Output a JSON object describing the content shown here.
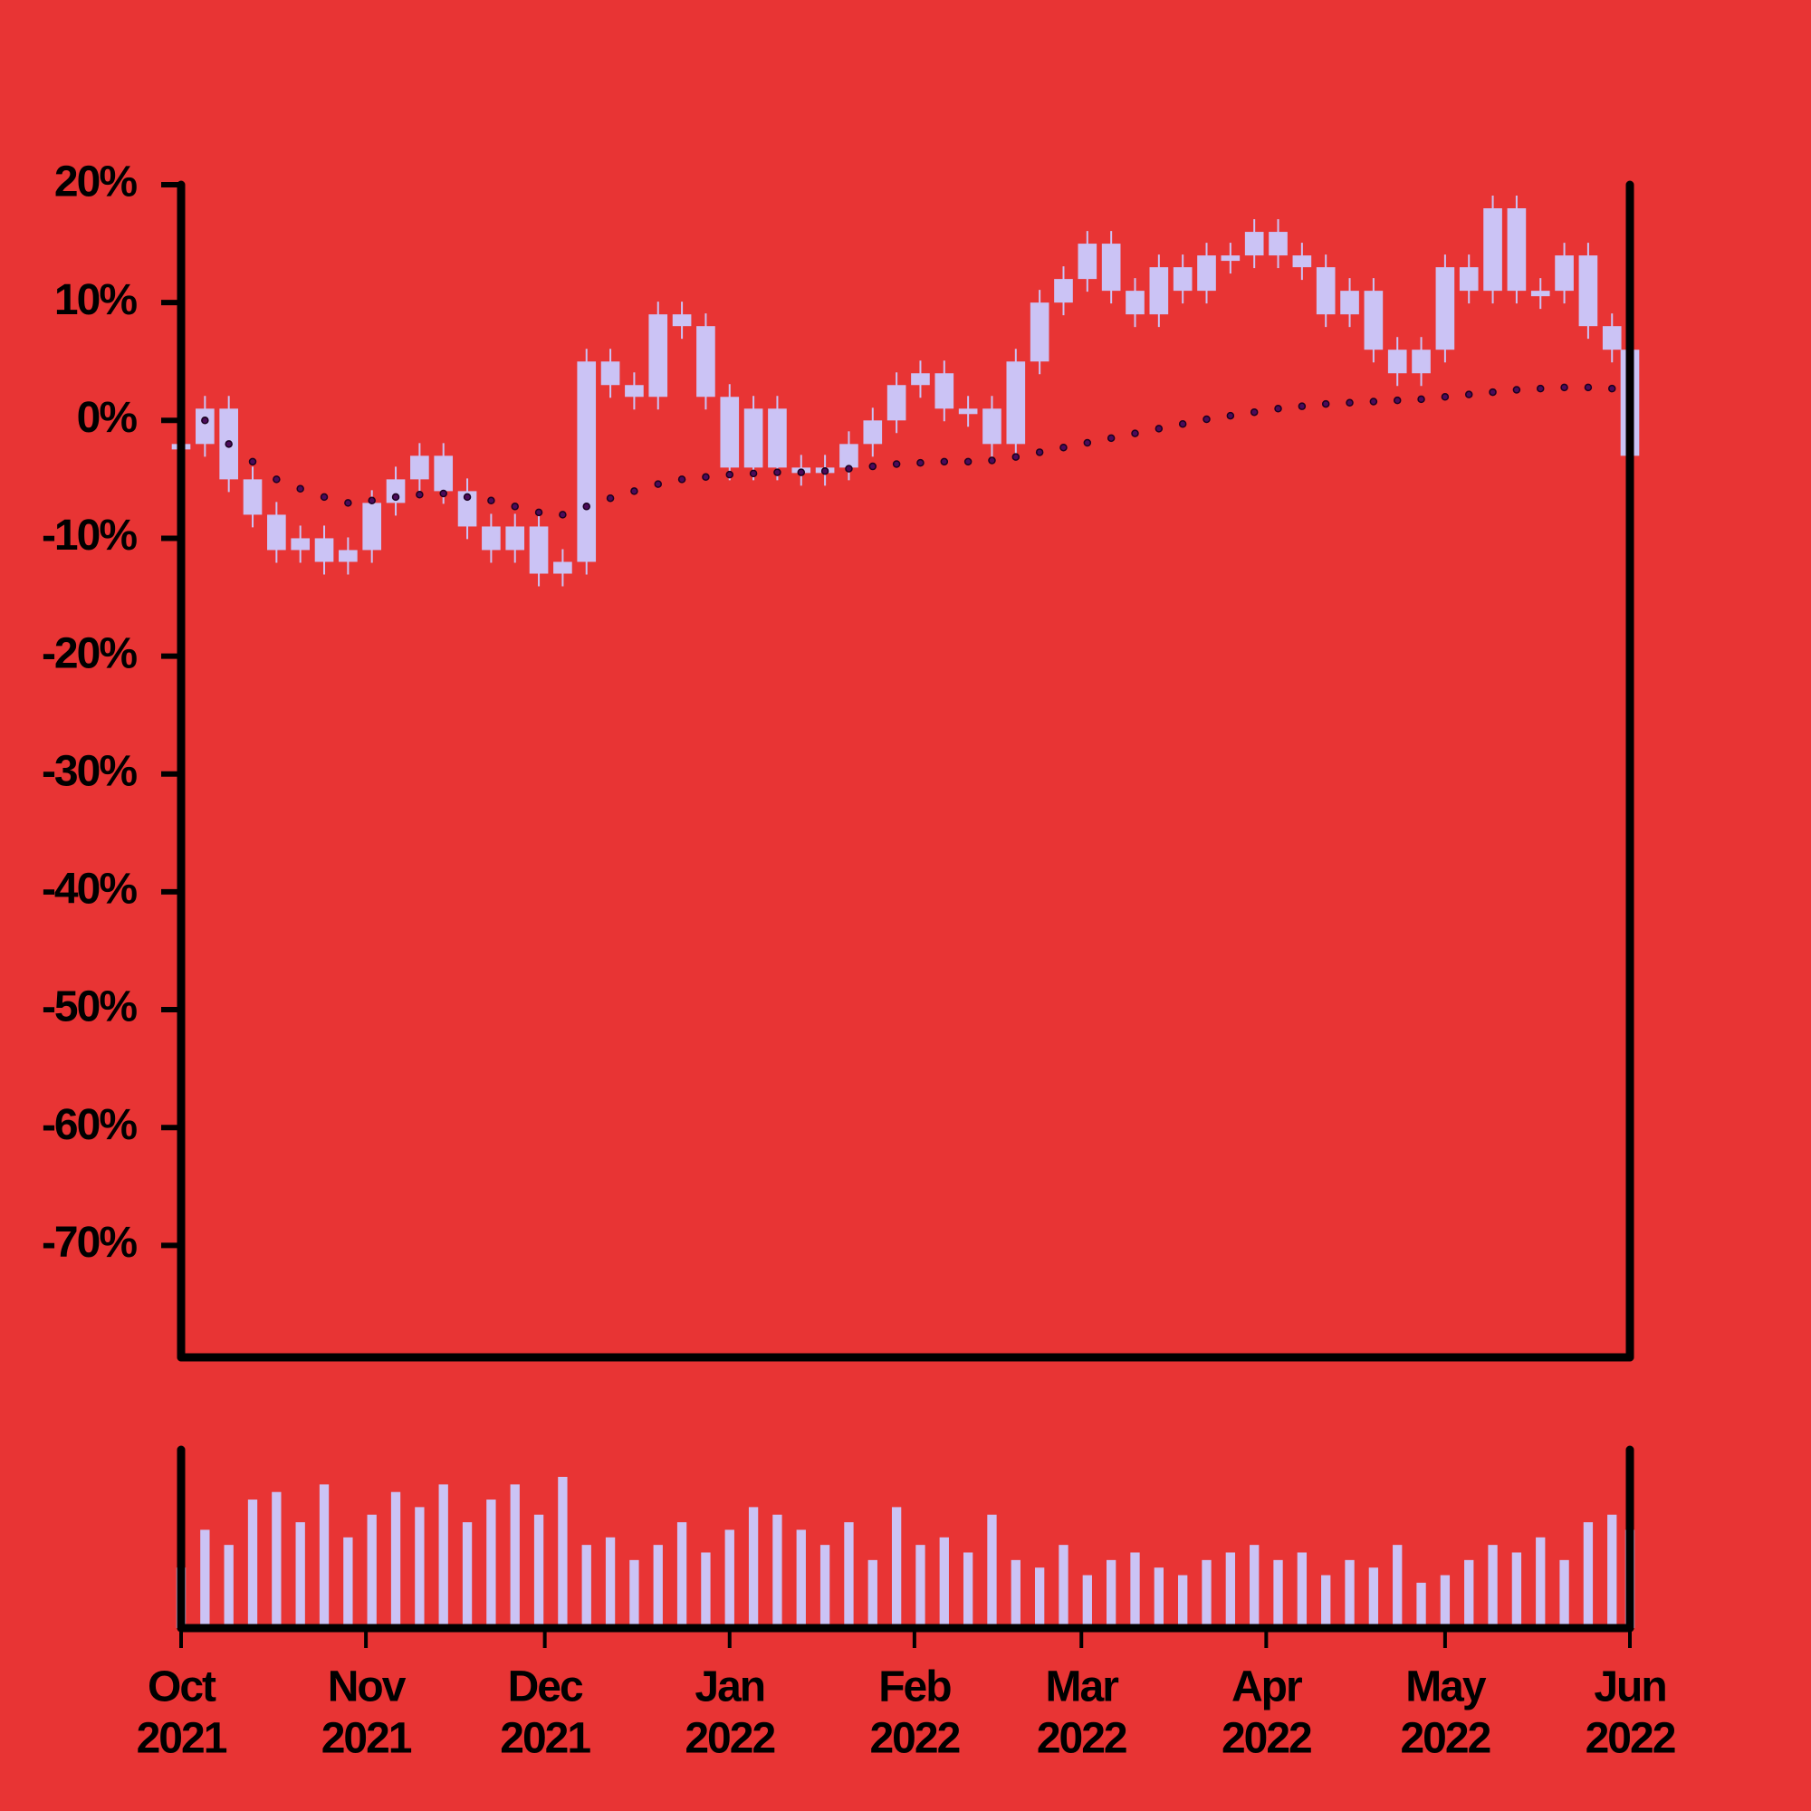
{
  "chart_data": {
    "type": "candle",
    "xlim": [
      "2021-10-01",
      "2022-06-01"
    ],
    "xticks": [
      {
        "value": "2021-10-01",
        "label": [
          "Oct",
          "2021"
        ]
      },
      {
        "value": "2021-11-01",
        "label": [
          "Nov",
          "2021"
        ]
      },
      {
        "value": "2021-12-01",
        "label": [
          "Dec",
          "2021"
        ]
      },
      {
        "value": "2022-01-01",
        "label": [
          "Jan",
          "2022"
        ]
      },
      {
        "value": "2022-02-01",
        "label": [
          "Feb",
          "2022"
        ]
      },
      {
        "value": "2022-03-01",
        "label": [
          "Mar",
          "2022"
        ]
      },
      {
        "value": "2022-04-01",
        "label": [
          "Apr",
          "2022"
        ]
      },
      {
        "value": "2022-05-01",
        "label": [
          "May",
          "2022"
        ]
      },
      {
        "value": "2022-06-01",
        "label": [
          "Jun",
          "2022"
        ]
      }
    ],
    "ylim": [
      -79.5,
      20
    ],
    "yticks": [
      {
        "value": 20,
        "label": "20%"
      },
      {
        "value": 10,
        "label": "10%"
      },
      {
        "value": 0,
        "label": "0%"
      },
      {
        "value": -10,
        "label": "-10%"
      },
      {
        "value": -20,
        "label": "-20%"
      },
      {
        "value": -30,
        "label": "-30%"
      },
      {
        "value": -40,
        "label": "-40%"
      },
      {
        "value": -50,
        "label": "-50%"
      },
      {
        "value": -60,
        "label": "-60%"
      },
      {
        "value": -70,
        "label": "-70%"
      }
    ],
    "x": [
      "2021-10-01",
      "2021-10-05",
      "2021-10-09",
      "2021-10-13",
      "2021-10-17",
      "2021-10-21",
      "2021-10-25",
      "2021-10-29",
      "2021-11-02",
      "2021-11-06",
      "2021-11-10",
      "2021-11-14",
      "2021-11-18",
      "2021-11-22",
      "2021-11-26",
      "2021-11-30",
      "2021-12-04",
      "2021-12-08",
      "2021-12-12",
      "2021-12-16",
      "2021-12-20",
      "2021-12-24",
      "2021-12-28",
      "2022-01-01",
      "2022-01-05",
      "2022-01-09",
      "2022-01-13",
      "2022-01-17",
      "2022-01-21",
      "2022-01-25",
      "2022-01-29",
      "2022-02-02",
      "2022-02-06",
      "2022-02-10",
      "2022-02-14",
      "2022-02-18",
      "2022-02-22",
      "2022-02-26",
      "2022-03-02",
      "2022-03-06",
      "2022-03-10",
      "2022-03-14",
      "2022-03-18",
      "2022-03-22",
      "2022-03-26",
      "2022-03-30",
      "2022-04-03",
      "2022-04-07",
      "2022-04-11",
      "2022-04-15",
      "2022-04-19",
      "2022-04-23",
      "2022-04-27",
      "2022-05-01",
      "2022-05-05",
      "2022-05-09",
      "2022-05-13",
      "2022-05-17",
      "2022-05-21",
      "2022-05-25",
      "2022-05-29",
      "2022-06-01"
    ],
    "series": [
      {
        "color": "#cbc3f5",
        "values": [
          -2,
          1,
          -5,
          -8,
          -11,
          -10,
          -12,
          -11,
          -7,
          -5,
          -3,
          -6,
          -9,
          -11,
          -9,
          -13,
          -12,
          5,
          3,
          2,
          9,
          8,
          2,
          -4,
          1,
          -4,
          -4,
          -4,
          -2,
          0,
          3,
          4,
          1,
          1,
          -2,
          5,
          10,
          12,
          15,
          11,
          9,
          13,
          11,
          14,
          14,
          16,
          14,
          13,
          9,
          11,
          6,
          4,
          6,
          13,
          11,
          18,
          11,
          11,
          14,
          8,
          6,
          -3
        ]
      },
      {
        "color": "#4a0a5a",
        "values": [
          -2,
          0,
          -2,
          -3.5,
          -5,
          -5.8,
          -6.5,
          -7,
          -6.8,
          -6.5,
          -6.3,
          -6.2,
          -6.5,
          -6.8,
          -7.3,
          -7.8,
          -8,
          -7.3,
          -6.6,
          -6,
          -5.4,
          -5,
          -4.8,
          -4.6,
          -4.5,
          -4.4,
          -4.4,
          -4.3,
          -4.1,
          -3.9,
          -3.7,
          -3.6,
          -3.5,
          -3.5,
          -3.4,
          -3.1,
          -2.7,
          -2.3,
          -1.9,
          -1.5,
          -1.1,
          -0.7,
          -0.3,
          0.1,
          0.4,
          0.7,
          1,
          1.2,
          1.4,
          1.5,
          1.6,
          1.7,
          1.8,
          2,
          2.2,
          2.4,
          2.6,
          2.7,
          2.8,
          2.8,
          2.7,
          2.6
        ]
      }
    ],
    "volume": {
      "color": "#cbc3f5",
      "values": [
        40,
        65,
        55,
        85,
        90,
        70,
        95,
        60,
        75,
        90,
        80,
        95,
        70,
        85,
        95,
        75,
        100,
        55,
        60,
        45,
        55,
        70,
        50,
        65,
        80,
        75,
        65,
        55,
        70,
        45,
        80,
        55,
        60,
        50,
        75,
        45,
        40,
        55,
        35,
        45,
        50,
        40,
        35,
        45,
        50,
        55,
        45,
        50,
        35,
        45,
        40,
        55,
        30,
        35,
        45,
        55,
        50,
        60,
        45,
        70,
        75,
        65
      ]
    }
  }
}
